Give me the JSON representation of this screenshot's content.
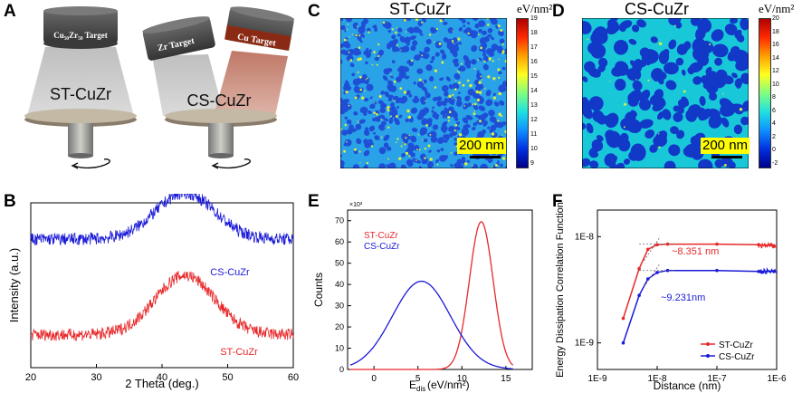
{
  "panels": {
    "a": {
      "letter": "A",
      "target_single": "Cu₅₀Zr₅₀ Target",
      "target_zr": "Zr Target",
      "target_cu": "Cu Target",
      "label_st": "ST-CuZr",
      "label_cs": "CS-CuZr"
    },
    "b": {
      "letter": "B"
    },
    "c": {
      "letter": "C",
      "title": "ST-CuZr",
      "unit": "eV/nm²",
      "scalebar": "200 nm",
      "colorbar_ticks": [
        "19",
        "18",
        "17",
        "16",
        "15",
        "14",
        "13",
        "12",
        "11",
        "10",
        "9"
      ]
    },
    "d": {
      "letter": "D",
      "title": "CS-CuZr",
      "unit": "eV/nm²",
      "scalebar": "200 nm",
      "colorbar_ticks": [
        "20",
        "18",
        "16",
        "14",
        "12",
        "10",
        "8",
        "6",
        "4",
        "2",
        "0",
        "-2"
      ]
    },
    "e": {
      "letter": "E"
    },
    "f": {
      "letter": "F"
    }
  },
  "colors": {
    "st": "#e8282a",
    "cs": "#1a1ad8",
    "map_bg": "#1e5ad8",
    "yellow": "#ffff00"
  },
  "chart_data": [
    {
      "type": "line",
      "panel": "B",
      "title": "",
      "xlabel": "2 Theta (deg.)",
      "ylabel": "Intensity (a.u.)",
      "xlim": [
        20,
        60
      ],
      "xticks": [
        "20",
        "30",
        "40",
        "50",
        "60"
      ],
      "series": [
        {
          "name": "CS-CuZr",
          "color": "#1a1ad8",
          "baseline": 0.78,
          "peak_x": 43.5,
          "peak_height": 0.28,
          "width": 4.5
        },
        {
          "name": "ST-CuZr",
          "color": "#e8282a",
          "baseline": 0.2,
          "peak_x": 43.5,
          "peak_height": 0.36,
          "width": 4.5
        }
      ]
    },
    {
      "type": "line",
      "panel": "E",
      "xlabel": "E",
      "xlabel_sub": "dis",
      "xlabel_unit": " (eV/nm²)",
      "ylabel": "Counts",
      "multiplier": "×10³",
      "xlim": [
        -3,
        18
      ],
      "ylim": [
        0,
        75
      ],
      "xticks": [
        "0",
        "5",
        "10",
        "15"
      ],
      "yticks": [
        "0",
        "10",
        "20",
        "30",
        "40",
        "50",
        "60",
        "70"
      ],
      "legend": [
        "ST-CuZr",
        "CS-CuZr"
      ],
      "series": [
        {
          "name": "ST-CuZr",
          "color": "#e8282a",
          "mean": 12.2,
          "sd": 1.35,
          "peak": 69.5
        },
        {
          "name": "CS-CuZr",
          "color": "#1a1ad8",
          "mean": 5.4,
          "sd": 3.3,
          "peak": 41.5
        }
      ]
    },
    {
      "type": "line",
      "panel": "F",
      "xlabel": "Distance (nm)",
      "ylabel": "Energy Dissipation Correlation Function",
      "xscale": "log",
      "yscale": "log",
      "xticks": [
        "1E-9",
        "1E-8",
        "1E-7",
        "1E-6"
      ],
      "yticks": [
        "1E-9",
        "1E-8"
      ],
      "annotations": [
        "~8.351 nm",
        "~9.231nm"
      ],
      "legend": [
        "ST-CuZr",
        "CS-CuZr"
      ],
      "series": [
        {
          "name": "ST-CuZr",
          "color": "#e8282a",
          "x": [
            2.7e-09,
            5e-09,
            7e-09,
            1e-08,
            1.5e-08,
            1e-07,
            5e-07,
            9e-07
          ],
          "y": [
            1.7e-09,
            5e-09,
            7.6e-09,
            8.4e-09,
            8.5e-09,
            8.5e-09,
            8.4e-09,
            8.2e-09
          ]
        },
        {
          "name": "CS-CuZr",
          "color": "#1a1ad8",
          "x": [
            2.7e-09,
            5e-09,
            7e-09,
            1e-08,
            1.5e-08,
            1e-07,
            5e-07,
            9e-07
          ],
          "y": [
            1e-09,
            2.8e-09,
            4e-09,
            4.6e-09,
            4.8e-09,
            4.8e-09,
            4.7e-09,
            4.7e-09
          ]
        }
      ]
    }
  ]
}
